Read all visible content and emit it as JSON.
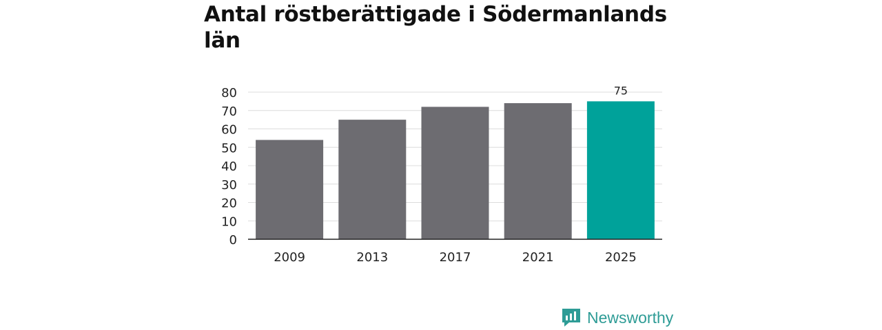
{
  "title": "Antal röstberättigade i Södermanlands län",
  "brand": {
    "name": "Newsworthy",
    "icon": "newsworthy-logo-icon",
    "color": "#2e9c96"
  },
  "chart_data": {
    "type": "bar",
    "title": "Antal röstberättigade i Södermanlands län",
    "xlabel": "",
    "ylabel": "",
    "categories": [
      "2009",
      "2013",
      "2017",
      "2021",
      "2025"
    ],
    "values": [
      54,
      65,
      72,
      74,
      75
    ],
    "ylim": [
      0,
      80
    ],
    "yticks": [
      0,
      10,
      20,
      30,
      40,
      50,
      60,
      70,
      80
    ],
    "grid": true,
    "legend": "none",
    "bar_colors": [
      "#6d6c71",
      "#6d6c71",
      "#6d6c71",
      "#6d6c71",
      "#00a29a"
    ],
    "data_labels": [
      {
        "category": "2025",
        "text": "75"
      }
    ]
  }
}
